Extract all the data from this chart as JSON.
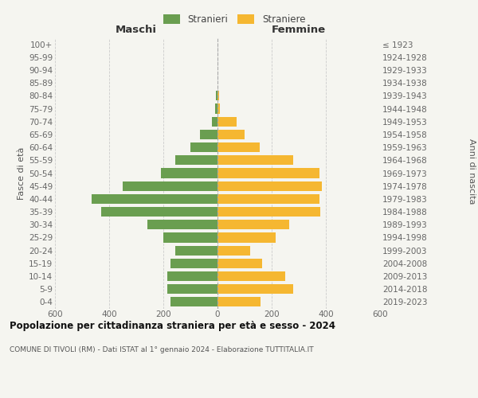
{
  "age_groups": [
    "0-4",
    "5-9",
    "10-14",
    "15-19",
    "20-24",
    "25-29",
    "30-34",
    "35-39",
    "40-44",
    "45-49",
    "50-54",
    "55-59",
    "60-64",
    "65-69",
    "70-74",
    "75-79",
    "80-84",
    "85-89",
    "90-94",
    "95-99",
    "100+"
  ],
  "birth_years": [
    "2019-2023",
    "2014-2018",
    "2009-2013",
    "2004-2008",
    "1999-2003",
    "1994-1998",
    "1989-1993",
    "1984-1988",
    "1979-1983",
    "1974-1978",
    "1969-1973",
    "1964-1968",
    "1959-1963",
    "1954-1958",
    "1949-1953",
    "1944-1948",
    "1939-1943",
    "1934-1938",
    "1929-1933",
    "1924-1928",
    "≤ 1923"
  ],
  "males": [
    175,
    185,
    185,
    175,
    155,
    200,
    260,
    430,
    465,
    350,
    210,
    155,
    100,
    65,
    20,
    8,
    5,
    0,
    0,
    0,
    0
  ],
  "females": [
    160,
    280,
    250,
    165,
    120,
    215,
    265,
    380,
    375,
    385,
    375,
    280,
    155,
    100,
    70,
    10,
    5,
    0,
    0,
    0,
    0
  ],
  "male_color": "#6a9e50",
  "female_color": "#f5b731",
  "male_label": "Stranieri",
  "female_label": "Straniere",
  "left_title": "Maschi",
  "right_title": "Femmine",
  "ylabel": "Fasce di età",
  "right_ylabel": "Anni di nascita",
  "main_title": "Popolazione per cittadinanza straniera per età e sesso - 2024",
  "subtitle": "COMUNE DI TIVOLI (RM) - Dati ISTAT al 1° gennaio 2024 - Elaborazione TUTTITALIA.IT",
  "xlim": 600,
  "bg_color": "#f5f5f0",
  "grid_color": "#cccccc"
}
